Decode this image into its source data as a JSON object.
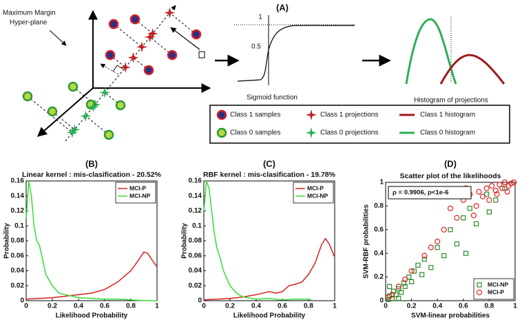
{
  "panel_a": {
    "label": "(A)",
    "hyperplane_label": [
      "Maximum Margin",
      "Hyper-plane"
    ],
    "sigmoid": {
      "tick_top": "1",
      "tick_mid": "0.5",
      "caption": "Sigmoid function"
    },
    "histogram_caption": "Histogram of projections",
    "legend": [
      [
        "Class 1 samples",
        "Class 1 projections",
        "Class 1 histogram"
      ],
      [
        "Class 0 samples",
        "Class 0 projections",
        "Class 0 histogram"
      ]
    ]
  },
  "chart_data": [
    {
      "type": "line",
      "label": "(B)",
      "title": "Linear kernel : mis-clasification - 20.52%",
      "x_label": "Likelihood Probability",
      "y_label": "Probability",
      "xlim": [
        0,
        1
      ],
      "ylim": [
        0,
        0.16
      ],
      "xticks": [
        0,
        0.2,
        0.4,
        0.6,
        0.8,
        1
      ],
      "yticks": [
        0,
        0.02,
        0.04,
        0.06,
        0.08,
        0.1,
        0.12,
        0.14,
        0.16
      ],
      "legend": "upper right",
      "series": [
        {
          "name": "MCI-P",
          "color": "#d42020",
          "x": [
            0,
            0.1,
            0.2,
            0.3,
            0.4,
            0.5,
            0.6,
            0.7,
            0.8,
            0.85,
            0.9,
            0.93,
            0.96,
            1
          ],
          "values": [
            0.002,
            0.003,
            0.004,
            0.006,
            0.008,
            0.01,
            0.015,
            0.025,
            0.04,
            0.052,
            0.065,
            0.063,
            0.055,
            0.045
          ]
        },
        {
          "name": "MCI-NP",
          "color": "#33dd33",
          "x": [
            0,
            0.02,
            0.04,
            0.06,
            0.08,
            0.1,
            0.12,
            0.15,
            0.2,
            0.25,
            0.3,
            0.4,
            0.5,
            0.6,
            0.7,
            0.8,
            0.9,
            1
          ],
          "values": [
            0.11,
            0.16,
            0.14,
            0.1,
            0.08,
            0.075,
            0.06,
            0.035,
            0.02,
            0.01,
            0.008,
            0.004,
            0.003,
            0.002,
            0.002,
            0.001,
            0,
            0
          ]
        }
      ]
    },
    {
      "type": "line",
      "label": "(C)",
      "title": "RBF kernel : mis-clasification - 19.78%",
      "x_label": "Likelihood Probability",
      "y_label": "Probability",
      "xlim": [
        0,
        1
      ],
      "ylim": [
        0,
        0.16
      ],
      "xticks": [
        0,
        0.2,
        0.4,
        0.6,
        0.8,
        1
      ],
      "yticks": [
        0,
        0.02,
        0.04,
        0.06,
        0.08,
        0.1,
        0.12,
        0.14,
        0.16
      ],
      "legend": "upper right",
      "series": [
        {
          "name": "MCI-P",
          "color": "#d42020",
          "x": [
            0,
            0.2,
            0.3,
            0.4,
            0.5,
            0.55,
            0.6,
            0.65,
            0.7,
            0.75,
            0.8,
            0.85,
            0.9,
            0.93,
            0.96,
            1
          ],
          "values": [
            0.001,
            0.003,
            0.005,
            0.008,
            0.012,
            0.01,
            0.012,
            0.02,
            0.022,
            0.025,
            0.035,
            0.05,
            0.075,
            0.083,
            0.075,
            0.058
          ]
        },
        {
          "name": "MCI-NP",
          "color": "#33dd33",
          "x": [
            0,
            0.02,
            0.04,
            0.06,
            0.08,
            0.1,
            0.12,
            0.15,
            0.2,
            0.25,
            0.3,
            0.4,
            0.5,
            0.6,
            0.7,
            0.8,
            0.82
          ],
          "values": [
            0.12,
            0.16,
            0.15,
            0.12,
            0.09,
            0.07,
            0.06,
            0.04,
            0.02,
            0.01,
            0.005,
            0.002,
            0.003,
            0.001,
            0.002,
            0.002,
            0.001
          ]
        }
      ]
    },
    {
      "type": "scatter",
      "label": "(D)",
      "title": "Scatter plot of the likelihoods",
      "x_label": "SVM-linear probabilities",
      "y_label": "SVM-RBF probabilities",
      "annotation": "ρ = 0.9906, p<1e-6",
      "xlim": [
        0,
        1
      ],
      "ylim": [
        0,
        1
      ],
      "xticks": [
        0,
        0.2,
        0.4,
        0.6,
        0.8,
        1
      ],
      "yticks": [
        0,
        0.2,
        0.4,
        0.6,
        0.8,
        1
      ],
      "legend": "lower right",
      "series": [
        {
          "name": "MCI-NP",
          "color": "#2a8a2a",
          "marker": "square",
          "x": [
            0.02,
            0.03,
            0.05,
            0.06,
            0.08,
            0.1,
            0.12,
            0.14,
            0.15,
            0.18,
            0.2,
            0.22,
            0.25,
            0.28,
            0.3,
            0.35,
            0.4,
            0.45,
            0.5,
            0.55,
            0.6,
            0.62,
            0.65,
            0.7,
            0.78,
            0.8,
            0.85,
            0.92,
            0.03,
            0.1
          ],
          "values": [
            0.01,
            0.04,
            0.02,
            0.08,
            0.05,
            0.1,
            0.07,
            0.15,
            0.12,
            0.2,
            0.16,
            0.25,
            0.3,
            0.22,
            0.35,
            0.28,
            0.45,
            0.38,
            0.6,
            0.48,
            0.7,
            0.4,
            0.78,
            0.65,
            0.9,
            0.75,
            0.85,
            0.95,
            0.12,
            0.02
          ]
        },
        {
          "name": "MCI-P",
          "color": "#e02020",
          "marker": "circle",
          "x": [
            0.02,
            0.05,
            0.1,
            0.15,
            0.2,
            0.3,
            0.4,
            0.45,
            0.5,
            0.55,
            0.6,
            0.65,
            0.7,
            0.72,
            0.75,
            0.78,
            0.8,
            0.82,
            0.85,
            0.88,
            0.9,
            0.92,
            0.95,
            0.97,
            0.99,
            0.62,
            0.35,
            0.68,
            0.86,
            0.94
          ],
          "values": [
            0.03,
            0.05,
            0.12,
            0.18,
            0.25,
            0.38,
            0.5,
            0.6,
            0.78,
            0.7,
            0.85,
            0.9,
            0.8,
            0.92,
            0.88,
            0.95,
            0.85,
            0.97,
            0.93,
            0.98,
            0.95,
            1,
            0.97,
            0.99,
            1,
            0.95,
            0.45,
            0.72,
            0.9,
            0.92
          ]
        }
      ]
    }
  ]
}
